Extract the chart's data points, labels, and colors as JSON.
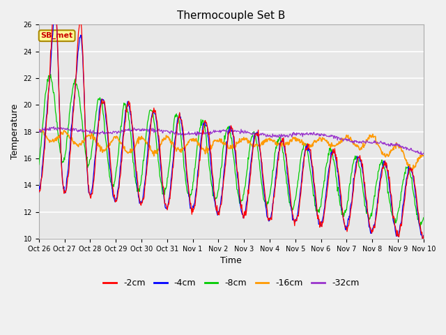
{
  "title": "Thermocouple Set B",
  "xlabel": "Time",
  "ylabel": "Temperature",
  "ylim": [
    10,
    26
  ],
  "yticks": [
    10,
    12,
    14,
    16,
    18,
    20,
    22,
    24,
    26
  ],
  "fig_bg_color": "#f0f0f0",
  "plot_bg_color": "#e8e8e8",
  "legend_labels": [
    "-2cm",
    "-4cm",
    "-8cm",
    "-16cm",
    "-32cm"
  ],
  "legend_colors": [
    "#ff0000",
    "#0000ff",
    "#00cc00",
    "#ff9900",
    "#9933cc"
  ],
  "annotation_text": "SB_met",
  "annotation_color": "#cc0000",
  "annotation_bg": "#ffff99",
  "annotation_border": "#aa8800",
  "x_tick_labels": [
    "Oct 26",
    "Oct 27",
    "Oct 28",
    "Oct 29",
    "Oct 30",
    "Oct 31",
    "Nov 1",
    "Nov 2",
    "Nov 3",
    "Nov 4",
    "Nov 5",
    "Nov 6",
    "Nov 7",
    "Nov 8",
    "Nov 9",
    "Nov 10"
  ],
  "n_days": 15,
  "points_per_day": 48,
  "title_fontsize": 11,
  "axis_label_fontsize": 9,
  "tick_fontsize": 7,
  "legend_fontsize": 9
}
